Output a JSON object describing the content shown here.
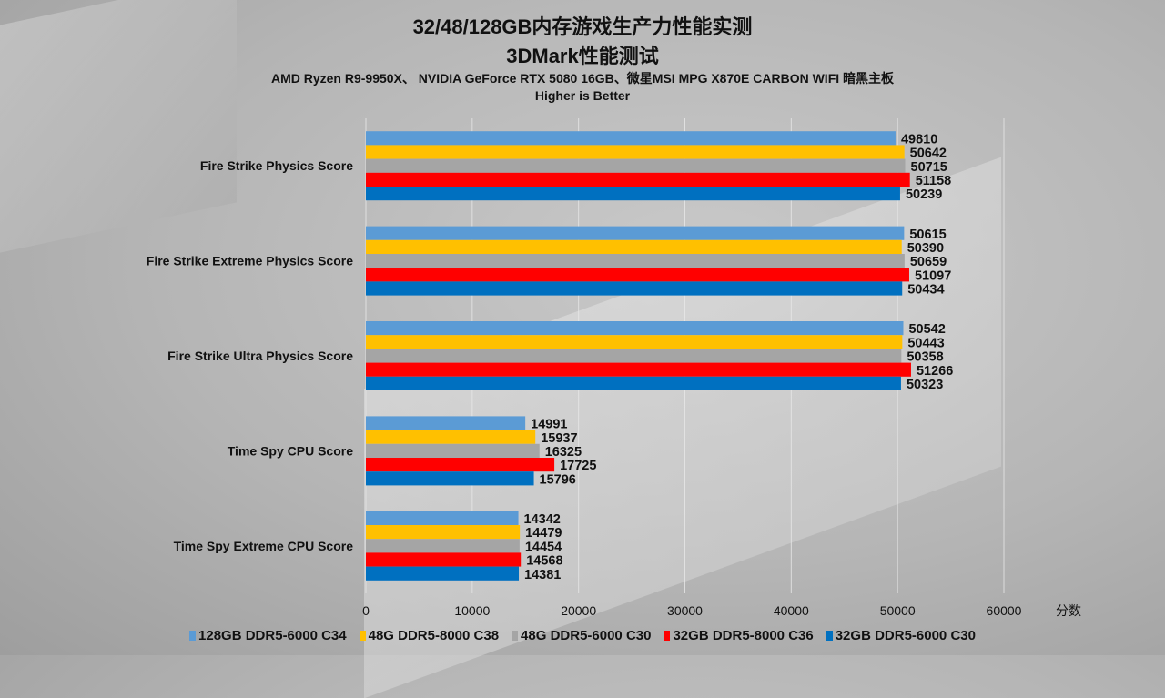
{
  "chart_data": {
    "type": "bar",
    "orientation": "horizontal",
    "title": "32/48/128GB内存游戏生产力性能实测",
    "subtitle": "3DMark性能测试",
    "note1": "AMD Ryzen R9-9950X、 NVIDIA GeForce RTX 5080 16GB、微星MSI MPG X870E CARBON WIFI 暗黑主板",
    "note2": "Higher is Better",
    "xlabel": "分数",
    "xlim": [
      0,
      60000
    ],
    "xticks": [
      "0",
      "10000",
      "20000",
      "30000",
      "40000",
      "50000",
      "60000"
    ],
    "grid": true,
    "legend_position": "bottom",
    "categories": [
      "Fire Strike Physics Score",
      "Fire Strike Extreme Physics Score",
      "Fire Strike Ultra Physics Score",
      "Time Spy CPU Score",
      "Time Spy Extreme CPU Score"
    ],
    "series": [
      {
        "name": "128GB DDR5-6000 C34",
        "color": "#5b9bd5",
        "values": [
          49810,
          50615,
          50542,
          14991,
          14342
        ]
      },
      {
        "name": "48G DDR5-8000 C38",
        "color": "#ffc000",
        "values": [
          50642,
          50390,
          50443,
          15937,
          14479
        ]
      },
      {
        "name": "48G DDR5-6000 C30",
        "color": "#a5a5a5",
        "values": [
          50715,
          50659,
          50358,
          16325,
          14454
        ]
      },
      {
        "name": "32GB DDR5-8000 C36",
        "color": "#ff0000",
        "values": [
          51158,
          51097,
          51266,
          17725,
          14568
        ]
      },
      {
        "name": "32GB DDR5-6000 C30",
        "color": "#0070c0",
        "values": [
          50239,
          50434,
          50323,
          15796,
          14381
        ]
      }
    ]
  }
}
